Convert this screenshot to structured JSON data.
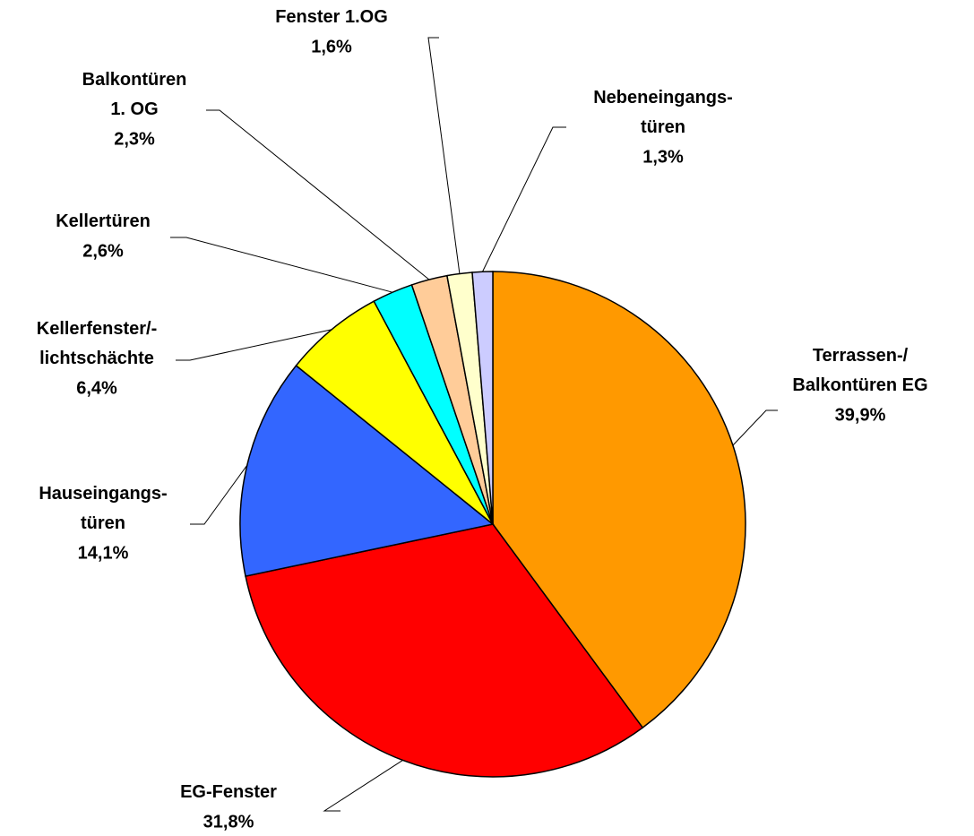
{
  "chart_data": {
    "type": "pie",
    "categories": [
      "Terrassen-/\nBalkontüren EG",
      "EG-Fenster",
      "Hauseingangs-\ntüren",
      "Kellerfenster/-\nlichtschächte",
      "Kellertüren",
      "Balkontüren\n1. OG",
      "Fenster 1.OG",
      "Nebeneingangs-\ntüren"
    ],
    "values": [
      39.9,
      31.8,
      14.1,
      6.4,
      2.6,
      2.3,
      1.6,
      1.3
    ],
    "value_labels": [
      "39,9%",
      "31,8%",
      "14,1%",
      "6,4%",
      "2,6%",
      "2,3%",
      "1,6%",
      "1,3%"
    ],
    "colors": [
      "#ff9900",
      "#ff0000",
      "#3366ff",
      "#ffff00",
      "#00ffff",
      "#ffcc99",
      "#ffffcc",
      "#ccccff"
    ]
  }
}
